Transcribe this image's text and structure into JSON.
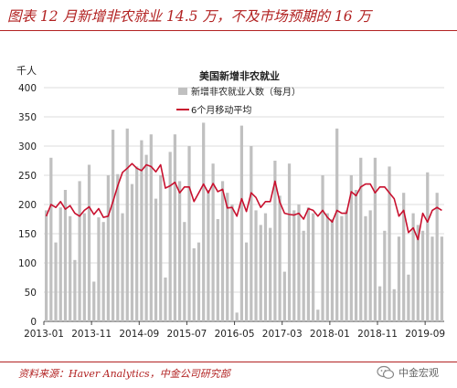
{
  "page": {
    "title": "图表 12 月新增非农就业 14.5 万，不及市场预期的 16 万",
    "source": "资料来源：Haver Analytics，中金公司研究部",
    "watermark": "中金宏观",
    "watermark_icon": "wechat-icon"
  },
  "colors": {
    "title": "#b22222",
    "bars": "#c0c0c0",
    "line": "#c8102e"
  },
  "chart_data": {
    "type": "bar",
    "title": "美国新增非农就业",
    "ylabel": "千人",
    "ylim": [
      0,
      400
    ],
    "yticks": [
      0,
      50,
      100,
      150,
      200,
      250,
      300,
      350,
      400
    ],
    "grid": true,
    "legend_position": "top-center",
    "x_tick_labels": [
      "2013-01",
      "2013-11",
      "2014-09",
      "2015-07",
      "2016-05",
      "2017-03",
      "2018-01",
      "2018-11",
      "2019-09"
    ],
    "x_tick_indices": [
      0,
      10,
      20,
      30,
      40,
      50,
      60,
      70,
      80
    ],
    "categories": [
      "2013-01",
      "2013-02",
      "2013-03",
      "2013-04",
      "2013-05",
      "2013-06",
      "2013-07",
      "2013-08",
      "2013-09",
      "2013-10",
      "2013-11",
      "2013-12",
      "2014-01",
      "2014-02",
      "2014-03",
      "2014-04",
      "2014-05",
      "2014-06",
      "2014-07",
      "2014-08",
      "2014-09",
      "2014-10",
      "2014-11",
      "2014-12",
      "2015-01",
      "2015-02",
      "2015-03",
      "2015-04",
      "2015-05",
      "2015-06",
      "2015-07",
      "2015-08",
      "2015-09",
      "2015-10",
      "2015-11",
      "2015-12",
      "2016-01",
      "2016-02",
      "2016-03",
      "2016-04",
      "2016-05",
      "2016-06",
      "2016-07",
      "2016-08",
      "2016-09",
      "2016-10",
      "2016-11",
      "2016-12",
      "2017-01",
      "2017-02",
      "2017-03",
      "2017-04",
      "2017-05",
      "2017-06",
      "2017-07",
      "2017-08",
      "2017-09",
      "2017-10",
      "2017-11",
      "2017-12",
      "2018-01",
      "2018-02",
      "2018-03",
      "2018-04",
      "2018-05",
      "2018-06",
      "2018-07",
      "2018-08",
      "2018-09",
      "2018-10",
      "2018-11",
      "2018-12",
      "2019-01",
      "2019-02",
      "2019-03",
      "2019-04",
      "2019-05",
      "2019-06",
      "2019-07",
      "2019-08",
      "2019-09",
      "2019-10",
      "2019-11",
      "2019-12"
    ],
    "series": [
      {
        "name": "新增非农就业人数（每月）",
        "type": "bar",
        "values": [
          190,
          280,
          135,
          195,
          225,
          180,
          105,
          240,
          185,
          268,
          68,
          178,
          170,
          250,
          328,
          252,
          185,
          330,
          235,
          265,
          310,
          285,
          320,
          210,
          250,
          75,
          290,
          320,
          240,
          170,
          300,
          125,
          135,
          340,
          225,
          270,
          175,
          240,
          220,
          200,
          15,
          335,
          135,
          300,
          190,
          165,
          185,
          160,
          275,
          215,
          85,
          270,
          190,
          200,
          155,
          195,
          185,
          20,
          250,
          185,
          175,
          330,
          180,
          190,
          250,
          225,
          280,
          180,
          190,
          280,
          60,
          155,
          265,
          55,
          145,
          220,
          80,
          185,
          165,
          155,
          255,
          145,
          220,
          145
        ]
      },
      {
        "name": "6个月移动平均",
        "type": "line",
        "values": [
          180,
          200,
          195,
          205,
          192,
          198,
          185,
          180,
          190,
          196,
          183,
          193,
          178,
          180,
          205,
          232,
          255,
          262,
          270,
          262,
          258,
          268,
          265,
          256,
          268,
          228,
          232,
          238,
          220,
          230,
          230,
          205,
          220,
          235,
          220,
          236,
          222,
          226,
          194,
          195,
          180,
          210,
          188,
          220,
          212,
          195,
          205,
          205,
          240,
          204,
          185,
          183,
          182,
          185,
          175,
          193,
          190,
          180,
          190,
          178,
          170,
          190,
          185,
          185,
          222,
          215,
          230,
          235,
          235,
          220,
          230,
          230,
          220,
          210,
          180,
          190,
          152,
          160,
          140,
          185,
          170,
          190,
          195,
          190
        ]
      }
    ]
  }
}
